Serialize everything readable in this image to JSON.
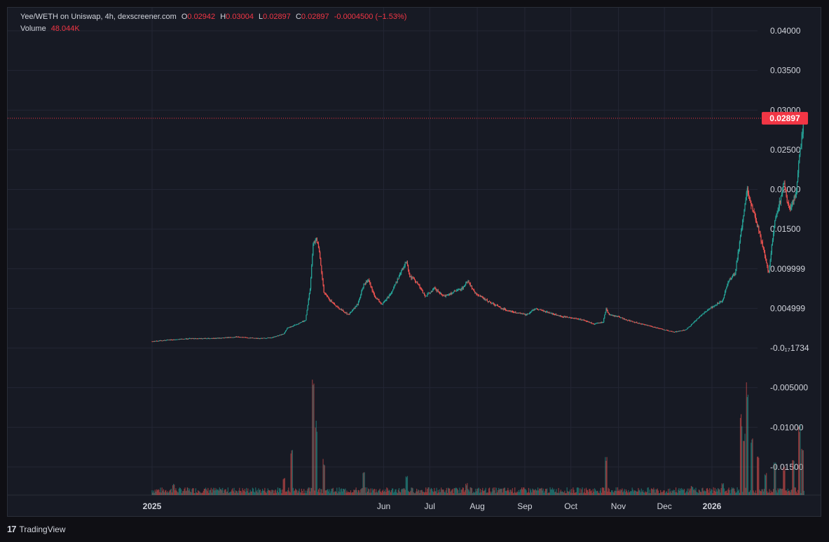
{
  "header": {
    "symbol": "Yee/WETH on Uniswap, 4h, dexscreener.com",
    "o_label": "O",
    "o_value": "0.02942",
    "h_label": "H",
    "h_value": "0.03004",
    "l_label": "L",
    "l_value": "0.02897",
    "c_label": "C",
    "c_value": "0.02897",
    "change": "-0.0004500 (−1.53%)",
    "volume_label": "Volume",
    "volume_value": "48.044K"
  },
  "last_price_tag": "0.02897",
  "footer": {
    "logo_mark": "17",
    "logo_text": "TradingView"
  },
  "colors": {
    "up": "#26a69a",
    "down": "#ef5350",
    "background": "#171a24",
    "grid": "#232634",
    "text": "#d1d4dc",
    "price_tag": "#f23645"
  },
  "chart_data": {
    "type": "candlestick",
    "interval": "4h",
    "grid": true,
    "price_axis": {
      "ticks": [
        {
          "label": "0.04000",
          "value": 0.04
        },
        {
          "label": "0.03500",
          "value": 0.035
        },
        {
          "label": "0.03000",
          "value": 0.03
        },
        {
          "label": "0.02500",
          "value": 0.025
        },
        {
          "label": "0.02000",
          "value": 0.02
        },
        {
          "label": "0.01500",
          "value": 0.015
        },
        {
          "label": "0.009999",
          "value": 0.01
        },
        {
          "label": "0.004999",
          "value": 0.005
        },
        {
          "label": "-0.0₁₇1734",
          "value": 0.0
        },
        {
          "label": "-0.005000",
          "value": -0.005
        },
        {
          "label": "-0.01000",
          "value": -0.01
        },
        {
          "label": "-0.01500",
          "value": -0.015
        }
      ],
      "last_price": 0.02897
    },
    "time_axis": {
      "labels": [
        {
          "label": "2025",
          "t": 0,
          "bold": true
        },
        {
          "label": "Jun",
          "t": 151,
          "bold": false
        },
        {
          "label": "Jul",
          "t": 181,
          "bold": false
        },
        {
          "label": "Aug",
          "t": 212,
          "bold": false
        },
        {
          "label": "Sep",
          "t": 243,
          "bold": false
        },
        {
          "label": "Oct",
          "t": 273,
          "bold": false
        },
        {
          "label": "Nov",
          "t": 304,
          "bold": false
        },
        {
          "label": "Dec",
          "t": 334,
          "bold": false
        },
        {
          "label": "2026",
          "t": 365,
          "bold": true
        }
      ]
    },
    "price_path": [
      [
        0,
        0.00085
      ],
      [
        10,
        0.001
      ],
      [
        25,
        0.0012
      ],
      [
        40,
        0.0012
      ],
      [
        55,
        0.0014
      ],
      [
        70,
        0.0012
      ],
      [
        78,
        0.0013
      ],
      [
        86,
        0.0018
      ],
      [
        88,
        0.0025
      ],
      [
        92,
        0.0028
      ],
      [
        100,
        0.0035
      ],
      [
        103,
        0.0075
      ],
      [
        105,
        0.013
      ],
      [
        107,
        0.014
      ],
      [
        109,
        0.012
      ],
      [
        112,
        0.007
      ],
      [
        116,
        0.006
      ],
      [
        122,
        0.005
      ],
      [
        128,
        0.0042
      ],
      [
        134,
        0.0055
      ],
      [
        138,
        0.008
      ],
      [
        141,
        0.0085
      ],
      [
        145,
        0.0065
      ],
      [
        150,
        0.0055
      ],
      [
        156,
        0.007
      ],
      [
        162,
        0.0095
      ],
      [
        166,
        0.011
      ],
      [
        168,
        0.009
      ],
      [
        172,
        0.0085
      ],
      [
        178,
        0.0065
      ],
      [
        184,
        0.0075
      ],
      [
        190,
        0.0065
      ],
      [
        196,
        0.007
      ],
      [
        202,
        0.0075
      ],
      [
        206,
        0.0085
      ],
      [
        210,
        0.007
      ],
      [
        218,
        0.006
      ],
      [
        228,
        0.005
      ],
      [
        236,
        0.0045
      ],
      [
        244,
        0.0042
      ],
      [
        250,
        0.005
      ],
      [
        258,
        0.0045
      ],
      [
        266,
        0.004
      ],
      [
        274,
        0.0038
      ],
      [
        282,
        0.0035
      ],
      [
        288,
        0.003
      ],
      [
        294,
        0.0033
      ],
      [
        296,
        0.005
      ],
      [
        298,
        0.0042
      ],
      [
        303,
        0.004
      ],
      [
        310,
        0.0035
      ],
      [
        320,
        0.003
      ],
      [
        330,
        0.0025
      ],
      [
        340,
        0.002
      ],
      [
        348,
        0.0023
      ],
      [
        352,
        0.003
      ],
      [
        356,
        0.0038
      ],
      [
        360,
        0.0045
      ],
      [
        364,
        0.005
      ],
      [
        368,
        0.0055
      ],
      [
        372,
        0.006
      ],
      [
        374,
        0.0075
      ],
      [
        376,
        0.0085
      ],
      [
        380,
        0.0095
      ],
      [
        382,
        0.012
      ],
      [
        384,
        0.0145
      ],
      [
        386,
        0.0175
      ],
      [
        388,
        0.02
      ],
      [
        390,
        0.0185
      ],
      [
        393,
        0.0165
      ],
      [
        396,
        0.0145
      ],
      [
        399,
        0.012
      ],
      [
        402,
        0.0095
      ],
      [
        404,
        0.013
      ],
      [
        406,
        0.016
      ],
      [
        408,
        0.0175
      ],
      [
        410,
        0.019
      ],
      [
        412,
        0.021
      ],
      [
        414,
        0.0185
      ],
      [
        416,
        0.0175
      ],
      [
        418,
        0.0185
      ],
      [
        420,
        0.02
      ],
      [
        422,
        0.024
      ],
      [
        424,
        0.027
      ],
      [
        425,
        0.029
      ]
    ],
    "volume_spikes": [
      {
        "t": 14,
        "rel": 0.1
      },
      {
        "t": 38,
        "rel": 0.05
      },
      {
        "t": 86,
        "rel": 0.15
      },
      {
        "t": 91,
        "rel": 0.42
      },
      {
        "t": 105,
        "rel": 1.0
      },
      {
        "t": 107,
        "rel": 0.62
      },
      {
        "t": 112,
        "rel": 0.3
      },
      {
        "t": 138,
        "rel": 0.2
      },
      {
        "t": 166,
        "rel": 0.18
      },
      {
        "t": 205,
        "rel": 0.1
      },
      {
        "t": 296,
        "rel": 0.35
      },
      {
        "t": 352,
        "rel": 0.08
      },
      {
        "t": 372,
        "rel": 0.1
      },
      {
        "t": 384,
        "rel": 0.68
      },
      {
        "t": 386,
        "rel": 0.55
      },
      {
        "t": 388,
        "rel": 0.95
      },
      {
        "t": 391,
        "rel": 0.5
      },
      {
        "t": 395,
        "rel": 0.34
      },
      {
        "t": 400,
        "rel": 0.2
      },
      {
        "t": 406,
        "rel": 0.3
      },
      {
        "t": 412,
        "rel": 0.25
      },
      {
        "t": 418,
        "rel": 0.35
      },
      {
        "t": 422,
        "rel": 0.6
      },
      {
        "t": 424,
        "rel": 0.45
      }
    ]
  }
}
